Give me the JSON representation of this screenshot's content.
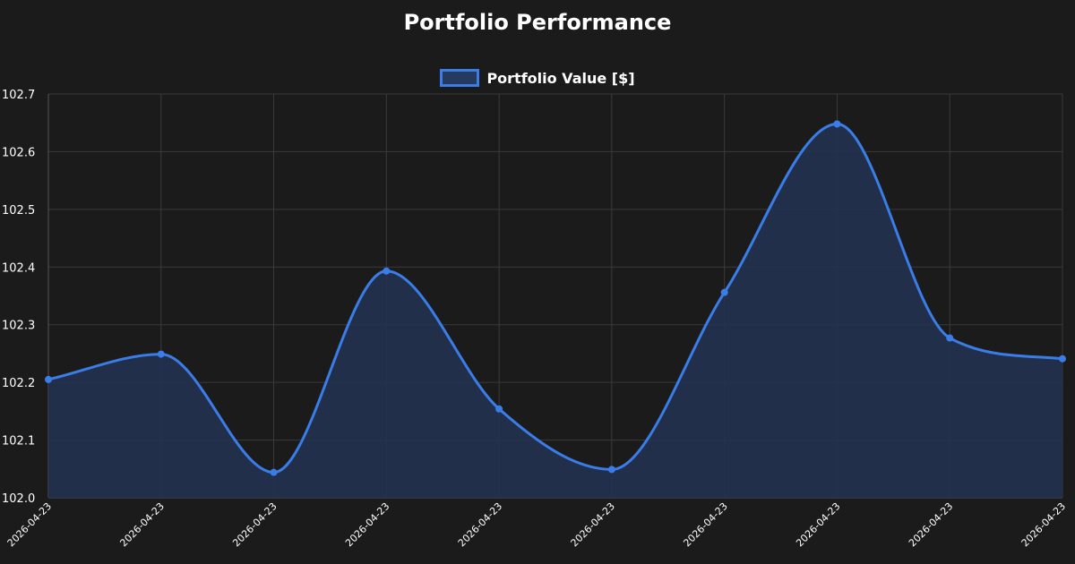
{
  "chart_data": {
    "type": "line",
    "title": "Portfolio Performance",
    "xlabel": "",
    "ylabel": "",
    "categories": [
      "2026-04-23",
      "2026-04-23",
      "2026-04-23",
      "2026-04-23",
      "2026-04-23",
      "2026-04-23",
      "2026-04-23",
      "2026-04-23",
      "2026-04-23",
      "2026-04-23"
    ],
    "series": [
      {
        "name": "Portfolio Value [$]",
        "values": [
          102.205,
          102.249,
          102.044,
          102.393,
          102.154,
          102.049,
          102.356,
          102.648,
          102.277,
          102.241
        ]
      }
    ],
    "ylim": [
      102.0,
      102.7
    ],
    "yticks": [
      "102.0",
      "102.1",
      "102.2",
      "102.3",
      "102.4",
      "102.5",
      "102.6",
      "102.7"
    ],
    "grid": true,
    "legend_position": "top-center",
    "filled_area": true,
    "colors": {
      "background": "#1b1b1b",
      "line": "#3b7de8",
      "fill": "#223250",
      "grid": "#3a3a3a"
    }
  }
}
